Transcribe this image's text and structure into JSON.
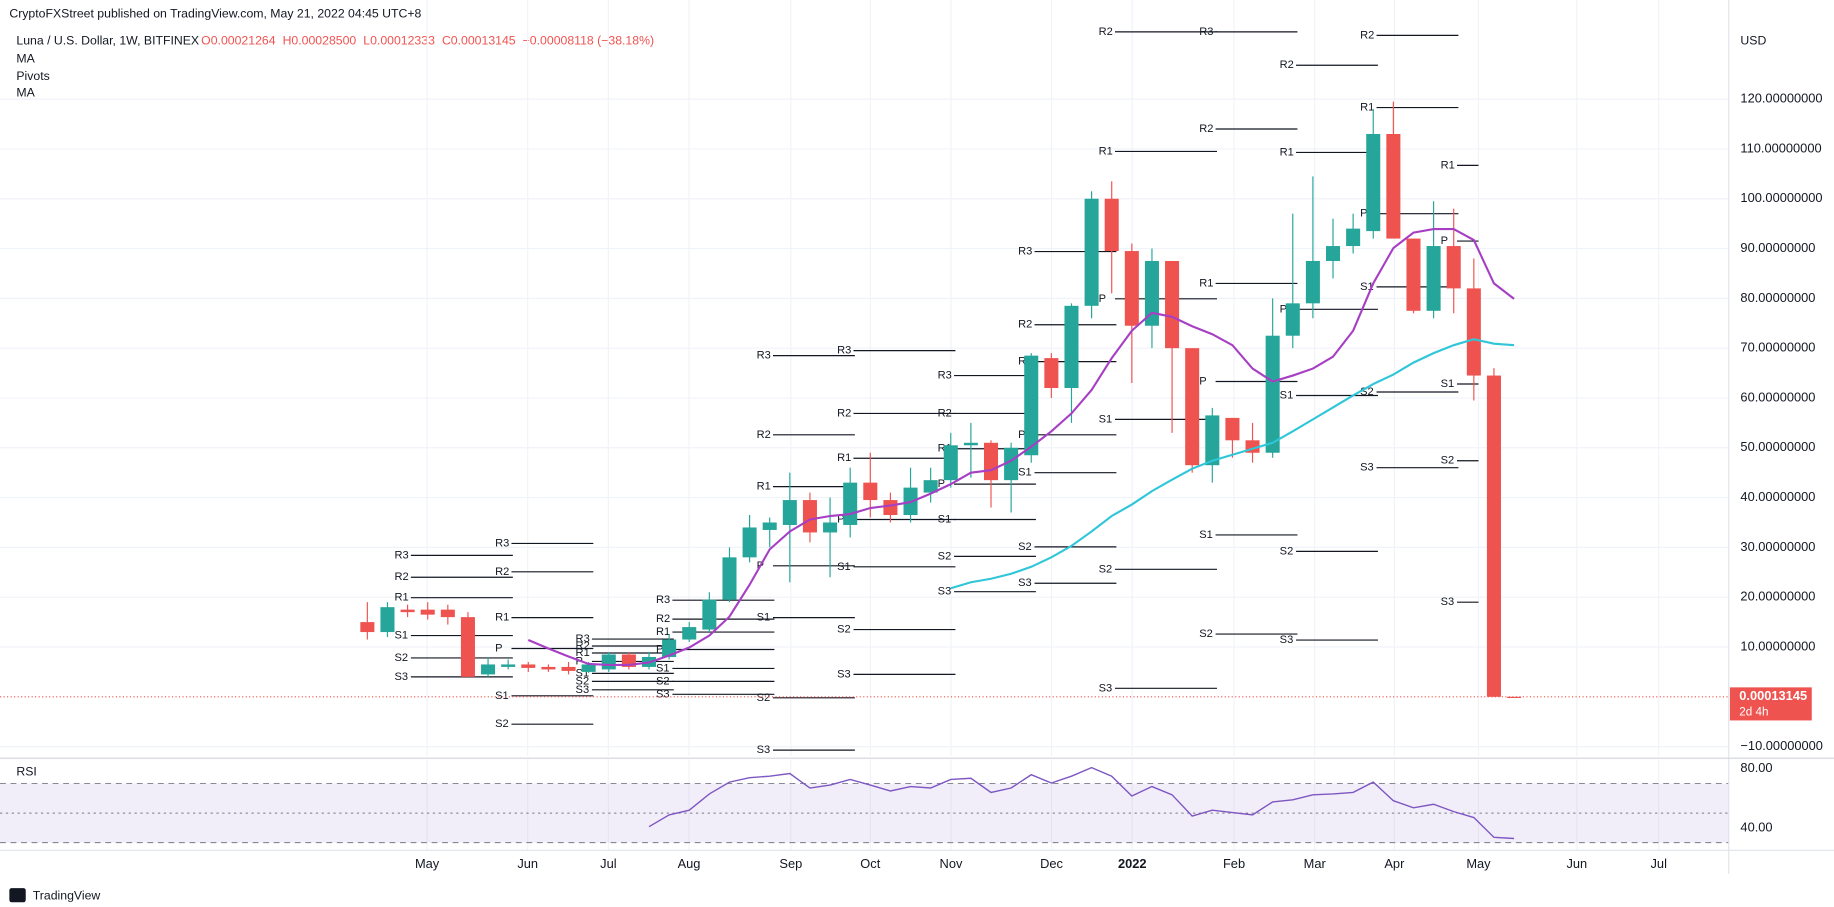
{
  "header": {
    "publisher": "CryptoFXStreet published on TradingView.com, May 21, 2022 04:45 UTC+8",
    "logo": "TradingView"
  },
  "chart_data": {
    "type": "candlestick",
    "symbol": "Luna / U.S. Dollar, 1W, BITFINEX",
    "ohlc_text": [
      "O0.00021264",
      "H0.00028500",
      "L0.00012333",
      "C0.00013145"
    ],
    "change_text": "−0.00008118 (−38.18%)",
    "currency": "USD",
    "open": [
      15,
      13,
      17.5,
      17.5,
      17.5,
      16,
      4.5,
      6,
      6.5,
      6,
      6,
      5,
      5.5,
      8.5,
      6,
      8,
      11.5,
      13.5,
      19.5,
      28,
      33.5,
      34.5,
      39.5,
      33,
      34.5,
      43,
      39.5,
      36.5,
      41,
      43.5,
      50.5,
      51,
      43.5,
      48.5,
      68,
      62,
      78.5,
      100,
      89.5,
      74.5,
      87.5,
      70,
      46.5,
      56,
      51.5,
      49,
      72.5,
      79,
      87.5,
      90.5,
      93.5,
      113,
      92,
      77.5,
      90.5,
      82,
      64.5,
      0.00021264
    ],
    "high": [
      19,
      19,
      18.5,
      19,
      18.5,
      17,
      8,
      7.5,
      7,
      6.5,
      7,
      7,
      9,
      9,
      9,
      12.5,
      15,
      21,
      30,
      36.5,
      36,
      45,
      41,
      40,
      46,
      49,
      41,
      46,
      46,
      53,
      55,
      51.5,
      51,
      69,
      69,
      79,
      101.5,
      103.5,
      91,
      90,
      87.5,
      70,
      58,
      56,
      55,
      80,
      97,
      104.5,
      96,
      97,
      118,
      119.5,
      92,
      99.5,
      98,
      88,
      66,
      0.000285
    ],
    "low": [
      11.5,
      12,
      16,
      15.5,
      14.5,
      4,
      4,
      5.5,
      5,
      5,
      4.5,
      4.8,
      5,
      5.5,
      5.5,
      7.5,
      11,
      13,
      19,
      27,
      30,
      23,
      31,
      24,
      32,
      36,
      35,
      35,
      39,
      42,
      44,
      38,
      37,
      47,
      60,
      55,
      76,
      81,
      63,
      70,
      53,
      45,
      43,
      48,
      47,
      48,
      70,
      76,
      84,
      89,
      92,
      92,
      77,
      76,
      77,
      59.5,
      0.00012,
      0.00012333
    ],
    "close": [
      13,
      18,
      17,
      16.5,
      16,
      4,
      6.5,
      6.5,
      5.8,
      5.5,
      5.2,
      6.5,
      8.5,
      6,
      8,
      11.5,
      14,
      19.5,
      28,
      34,
      35,
      39.5,
      33,
      35,
      43,
      39.5,
      36.5,
      42,
      43.5,
      50.5,
      51,
      43.5,
      50,
      68.5,
      62,
      78.5,
      100,
      89.5,
      74.5,
      87.5,
      70,
      46.5,
      56.5,
      51.5,
      49,
      72.5,
      79,
      87.5,
      90.5,
      94,
      113,
      92,
      77.5,
      90.5,
      82,
      64.5,
      0.0002,
      0.00013145
    ],
    "up_color": "#26a69a",
    "down_color": "#ef5350",
    "xlim": [
      -18.26,
      67.67
    ],
    "xticks": [
      {
        "value": 2.97,
        "label": "May"
      },
      {
        "value": 7.97,
        "label": "Jun"
      },
      {
        "value": 11.98,
        "label": "Jul"
      },
      {
        "value": 15.99,
        "label": "Aug"
      },
      {
        "value": 21.05,
        "label": "Sep"
      },
      {
        "value": 25,
        "label": "Oct"
      },
      {
        "value": 29.01,
        "label": "Nov"
      },
      {
        "value": 34.01,
        "label": "Dec"
      },
      {
        "value": 38.02,
        "label": "2022"
      },
      {
        "value": 43.08,
        "label": "Feb"
      },
      {
        "value": 47.09,
        "label": "Mar"
      },
      {
        "value": 51.05,
        "label": "Apr"
      },
      {
        "value": 55.23,
        "label": "May"
      },
      {
        "value": 60.12,
        "label": "Jun"
      },
      {
        "value": 64.19,
        "label": "Jul"
      }
    ],
    "ylim": [
      -11.85,
      139.9
    ],
    "yticks": [
      {
        "value": 120,
        "label": "120.00000000"
      },
      {
        "value": 110,
        "label": "110.00000000"
      },
      {
        "value": 100,
        "label": "100.00000000"
      },
      {
        "value": 90,
        "label": "90.00000000"
      },
      {
        "value": 80,
        "label": "80.00000000"
      },
      {
        "value": 70,
        "label": "70.00000000"
      },
      {
        "value": 60,
        "label": "60.00000000"
      },
      {
        "value": 50,
        "label": "50.00000000"
      },
      {
        "value": 40,
        "label": "40.00000000"
      },
      {
        "value": 30,
        "label": "30.00000000"
      },
      {
        "value": 20,
        "label": "20.00000000"
      },
      {
        "value": 10,
        "label": "10.00000000"
      },
      {
        "value": -10,
        "label": "−10.00000000"
      }
    ],
    "grid": true,
    "last_price": {
      "label": "0.00013145",
      "countdown": "2d 4h",
      "color": "#ef5350"
    },
    "series": [
      {
        "name": "MA",
        "color": "#a73fc4",
        "values": [
          null,
          null,
          null,
          null,
          null,
          null,
          null,
          null,
          11.4,
          9.7,
          8.1,
          6.6,
          6.4,
          6.4,
          6.9,
          8.3,
          9.9,
          12.3,
          16.1,
          22.5,
          29.6,
          33.2,
          35.6,
          36.3,
          36.7,
          37.9,
          38.4,
          39.1,
          40.8,
          42.7,
          45.0,
          45.5,
          47.4,
          50.2,
          53.3,
          56.9,
          61.6,
          68.0,
          73.5,
          77.1,
          76.3,
          74.4,
          72.8,
          70.6,
          65.9,
          63.3,
          64.5,
          65.9,
          68.3,
          73.5,
          83.0,
          90.1,
          93.2,
          93.9,
          93.9,
          91.7,
          83.0,
          79.9
        ]
      },
      {
        "name": "MA",
        "color": "#2ec6d8",
        "values": [
          null,
          null,
          null,
          null,
          null,
          null,
          null,
          null,
          null,
          null,
          null,
          null,
          null,
          null,
          null,
          null,
          null,
          null,
          null,
          null,
          null,
          null,
          null,
          null,
          null,
          null,
          null,
          null,
          null,
          21.8,
          23.0,
          23.7,
          24.7,
          26.1,
          28.0,
          30.3,
          33.2,
          36.3,
          38.6,
          41.3,
          43.6,
          45.8,
          47.4,
          48.6,
          49.8,
          51.0,
          53.3,
          55.7,
          58.1,
          60.5,
          62.8,
          64.7,
          67.1,
          69.0,
          70.6,
          71.8,
          70.9,
          70.6
        ]
      }
    ],
    "pivots": {
      "name": "Pivots",
      "periods": [
        {
          "start": 1,
          "end": 7,
          "levels": [
            {
              "label": "R3",
              "value": 28.4
            },
            {
              "label": "R2",
              "value": 24
            },
            {
              "label": "R1",
              "value": 19.9
            },
            {
              "label": "S1",
              "value": 12.3
            },
            {
              "label": "S2",
              "value": 7.8
            },
            {
              "label": "S3",
              "value": 4.0
            }
          ]
        },
        {
          "start": 6,
          "end": 11,
          "levels": [
            {
              "label": "R3",
              "value": 30.8
            },
            {
              "label": "R2",
              "value": 25.1
            },
            {
              "label": "R1",
              "value": 15.9
            },
            {
              "label": "P",
              "value": 9.7
            },
            {
              "label": "S1",
              "value": 0.2
            },
            {
              "label": "S2",
              "value": -5.5
            }
          ]
        },
        {
          "start": 10,
          "end": 15,
          "levels": [
            {
              "label": "R3",
              "value": 11.6
            },
            {
              "label": "R2",
              "value": 10.2
            },
            {
              "label": "R1",
              "value": 8.8
            },
            {
              "label": "P",
              "value": 7.1
            },
            {
              "label": "S1",
              "value": 4.7
            },
            {
              "label": "S2",
              "value": 3.1
            },
            {
              "label": "S3",
              "value": 1.4
            }
          ]
        },
        {
          "start": 14,
          "end": 20,
          "levels": [
            {
              "label": "R3",
              "value": 19.4
            },
            {
              "label": "R2",
              "value": 15.6
            },
            {
              "label": "R1",
              "value": 13.0
            },
            {
              "label": "P",
              "value": 9.5
            },
            {
              "label": "S1",
              "value": 5.7
            },
            {
              "label": "S2",
              "value": 3.1
            },
            {
              "label": "S3",
              "value": 0.5
            }
          ]
        },
        {
          "start": 19,
          "end": 24,
          "levels": [
            {
              "label": "R3",
              "value": 68.5
            },
            {
              "label": "R2",
              "value": 52.6
            },
            {
              "label": "R1",
              "value": 42.2
            },
            {
              "label": "P",
              "value": 26.3
            },
            {
              "label": "S1",
              "value": 15.9
            },
            {
              "label": "S2",
              "value": -0.2
            },
            {
              "label": "S3",
              "value": -10.7
            }
          ]
        },
        {
          "start": 23,
          "end": 29,
          "levels": [
            {
              "label": "R3",
              "value": 69.5
            },
            {
              "label": "R2",
              "value": 56.9
            },
            {
              "label": "R1",
              "value": 47.9
            },
            {
              "label": "P",
              "value": 35.6
            },
            {
              "label": "S1",
              "value": 26.1
            },
            {
              "label": "S2",
              "value": 13.5
            },
            {
              "label": "S3",
              "value": 4.5
            }
          ]
        },
        {
          "start": 28,
          "end": 33,
          "levels": [
            {
              "label": "R3",
              "value": 64.5
            },
            {
              "label": "R2",
              "value": 56.9
            },
            {
              "label": "R1",
              "value": 49.8
            },
            {
              "label": "P",
              "value": 42.7
            },
            {
              "label": "S1",
              "value": 35.6
            },
            {
              "label": "S2",
              "value": 28.2
            },
            {
              "label": "S3",
              "value": 21.1
            }
          ]
        },
        {
          "start": 32,
          "end": 37,
          "levels": [
            {
              "label": "R3",
              "value": 89.4
            },
            {
              "label": "R2",
              "value": 74.7
            },
            {
              "label": "R1",
              "value": 67.3
            },
            {
              "label": "P",
              "value": 52.6
            },
            {
              "label": "S1",
              "value": 45.0
            },
            {
              "label": "S2",
              "value": 30.1
            },
            {
              "label": "S3",
              "value": 22.8
            }
          ]
        },
        {
          "start": 36,
          "end": 42,
          "levels": [
            {
              "label": "R2",
              "value": 133.5
            },
            {
              "label": "R1",
              "value": 109.5
            },
            {
              "label": "P",
              "value": 79.9
            },
            {
              "label": "S1",
              "value": 55.7
            },
            {
              "label": "S2",
              "value": 25.6
            },
            {
              "label": "S3",
              "value": 1.7
            }
          ]
        },
        {
          "start": 41,
          "end": 46,
          "levels": [
            {
              "label": "R3",
              "value": 133.5
            },
            {
              "label": "R2",
              "value": 114.0
            },
            {
              "label": "R1",
              "value": 83.0
            },
            {
              "label": "P",
              "value": 63.3
            },
            {
              "label": "S1",
              "value": 32.5
            },
            {
              "label": "S2",
              "value": 12.6
            }
          ]
        },
        {
          "start": 45,
          "end": 50,
          "levels": [
            {
              "label": "R2",
              "value": 126.8
            },
            {
              "label": "R1",
              "value": 109.3
            },
            {
              "label": "P",
              "value": 77.8
            },
            {
              "label": "S1",
              "value": 60.5
            },
            {
              "label": "S2",
              "value": 29.2
            },
            {
              "label": "S3",
              "value": 11.4
            }
          ]
        },
        {
          "start": 49,
          "end": 54,
          "levels": [
            {
              "label": "R2",
              "value": 132.8
            },
            {
              "label": "R1",
              "value": 118.3
            },
            {
              "label": "P",
              "value": 97.0
            },
            {
              "label": "S1",
              "value": 82.3
            },
            {
              "label": "S2",
              "value": 61.2
            },
            {
              "label": "S3",
              "value": 46.0
            }
          ]
        },
        {
          "start": 53,
          "end": 55,
          "levels": [
            {
              "label": "R1",
              "value": 106.7
            },
            {
              "label": "P",
              "value": 91.5
            },
            {
              "label": "S1",
              "value": 62.8
            },
            {
              "label": "S2",
              "value": 47.4
            },
            {
              "label": "S3",
              "value": 19.0
            }
          ]
        }
      ]
    },
    "rsi": {
      "name": "RSI",
      "color": "#7e57c2",
      "values": [
        null,
        null,
        null,
        null,
        null,
        null,
        null,
        null,
        null,
        null,
        null,
        null,
        null,
        null,
        40.8,
        48.8,
        52,
        63,
        71,
        74,
        75,
        76.8,
        67,
        69,
        72.8,
        69,
        65,
        68,
        67,
        72.8,
        73.6,
        64,
        67,
        76,
        70.4,
        75,
        80.8,
        75,
        61.6,
        68,
        62.4,
        48,
        52,
        50.4,
        48.8,
        57.6,
        59,
        62.4,
        63,
        64,
        71,
        58.4,
        53.6,
        56,
        51,
        47,
        33.6,
        32.8
      ],
      "ylim": [
        26.4,
        84.8
      ],
      "yticks": [
        {
          "value": 80,
          "label": "80.00"
        },
        {
          "value": 40,
          "label": "40.00"
        }
      ],
      "bands": [
        70,
        50,
        30
      ]
    }
  }
}
